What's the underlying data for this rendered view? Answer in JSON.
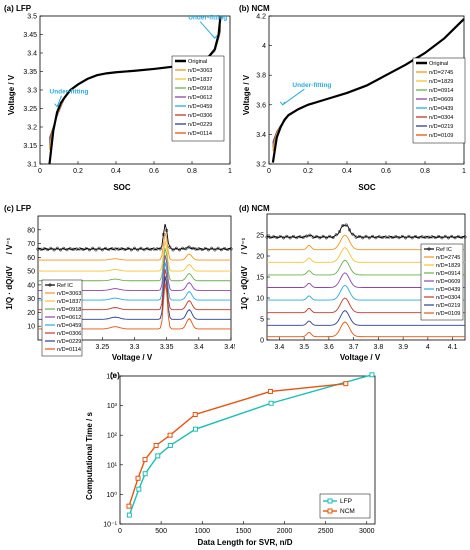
{
  "palette": [
    "#000000",
    "#f7941d",
    "#f4c430",
    "#6ab04c",
    "#8e44ad",
    "#29abe2",
    "#c0392b",
    "#2c3e91",
    "#e8530e"
  ],
  "chart_data": [
    {
      "id": "a",
      "type": "line",
      "panel_label": "(a) LFP",
      "xlabel": "SOC",
      "ylabel": "Voltage / V",
      "xlim": [
        0,
        1
      ],
      "ylim": [
        3.1,
        3.5
      ],
      "xticks": [
        0,
        0.2,
        0.4,
        0.6,
        0.8,
        1
      ],
      "yticks": [
        3.1,
        3.15,
        3.2,
        3.25,
        3.3,
        3.35,
        3.4,
        3.45,
        3.5
      ],
      "xtick_labels": [
        "0",
        "0.2",
        "0.4",
        "0.6",
        "0.8",
        "1"
      ],
      "ytick_labels": [
        "3.1",
        "3.15",
        "3.2",
        "3.25",
        "3.3",
        "3.35",
        "3.4",
        "3.45",
        "3.5"
      ],
      "legend": [
        "Original",
        "n/D=3063",
        "n/D=1837",
        "n/D=0918",
        "n/D=0612",
        "n/D=0459",
        "n/D=0306",
        "n/D=0229",
        "n/D=0114"
      ],
      "x": [
        0.05,
        0.07,
        0.09,
        0.11,
        0.13,
        0.16,
        0.2,
        0.25,
        0.3,
        0.35,
        0.4,
        0.5,
        0.6,
        0.7,
        0.8,
        0.88,
        0.92,
        0.94,
        0.95
      ],
      "original": [
        3.1,
        3.19,
        3.24,
        3.265,
        3.28,
        3.3,
        3.315,
        3.33,
        3.34,
        3.345,
        3.348,
        3.352,
        3.357,
        3.363,
        3.372,
        3.385,
        3.41,
        3.45,
        3.5
      ],
      "fit_start": [
        3.17,
        3.2,
        3.23,
        3.255,
        3.27,
        3.295,
        3.315,
        3.33,
        3.34,
        3.345,
        3.348,
        3.352,
        3.357,
        3.363,
        3.372,
        3.385,
        3.405,
        3.44,
        3.46
      ],
      "annotations": [
        {
          "text": "Under-fitting",
          "x": 0.05,
          "y": 3.29,
          "arrow_to": [
            0.09,
            3.255
          ]
        },
        {
          "text": "Under-fitting",
          "x": 0.78,
          "y": 3.49,
          "arrow_to": [
            0.92,
            3.44
          ]
        }
      ]
    },
    {
      "id": "b",
      "type": "line",
      "panel_label": "(b) NCM",
      "xlabel": "SOC",
      "ylabel": "Voltage / V",
      "xlim": [
        0,
        1
      ],
      "ylim": [
        3.2,
        4.2
      ],
      "xticks": [
        0,
        0.2,
        0.4,
        0.6,
        0.8,
        1
      ],
      "yticks": [
        3.2,
        3.4,
        3.6,
        3.8,
        4,
        4.2
      ],
      "xtick_labels": [
        "0",
        "0.2",
        "0.4",
        "0.6",
        "0.8",
        "1"
      ],
      "ytick_labels": [
        "3.2",
        "3.4",
        "3.6",
        "3.8",
        "4",
        "4.2"
      ],
      "legend": [
        "Original",
        "n/D=2745",
        "n/D=1829",
        "n/D=0914",
        "n/D=0609",
        "n/D=0439",
        "n/D=0304",
        "n/D=0219",
        "n/D=0109"
      ],
      "x": [
        0.02,
        0.04,
        0.06,
        0.08,
        0.1,
        0.15,
        0.2,
        0.3,
        0.4,
        0.5,
        0.6,
        0.7,
        0.8,
        0.9,
        1.0
      ],
      "original": [
        3.21,
        3.38,
        3.45,
        3.5,
        3.53,
        3.57,
        3.6,
        3.64,
        3.68,
        3.73,
        3.8,
        3.87,
        3.95,
        4.05,
        4.18
      ],
      "fit_start": [
        3.35,
        3.42,
        3.46,
        3.49,
        3.52,
        3.565,
        3.6,
        3.64,
        3.68,
        3.73,
        3.8,
        3.87,
        3.95,
        4.05,
        4.18
      ],
      "annotations": [
        {
          "text": "Under-fitting",
          "x": 0.12,
          "y": 3.72,
          "arrow_to": [
            0.07,
            3.6
          ]
        }
      ]
    },
    {
      "id": "c",
      "type": "line",
      "panel_label": "(c) LFP",
      "xlabel": "Voltage / V",
      "ylabel_main": "1/Q · dQ/dV",
      "ylabel_unit": "/ V⁻¹",
      "xlim": [
        3.15,
        3.45
      ],
      "ylim": [
        0,
        90
      ],
      "xticks": [
        3.2,
        3.25,
        3.3,
        3.35,
        3.4,
        3.45
      ],
      "yticks": [
        10,
        20,
        30,
        40,
        50,
        60,
        70,
        80
      ],
      "xtick_labels": [
        "3.2",
        "3.25",
        "3.3",
        "3.35",
        "3.4",
        "3.45"
      ],
      "ytick_labels": [
        "10",
        "20",
        "30",
        "40",
        "50",
        "60",
        "70",
        "80"
      ],
      "legend": [
        "Ref IC",
        "n/D=3063",
        "n/D=1837",
        "n/D=0918",
        "n/D=0612",
        "n/D=0459",
        "n/D=0306",
        "n/D=0229",
        "n/D=0114"
      ],
      "offsets": [
        66,
        58,
        50,
        43,
        36,
        29,
        22,
        15,
        8
      ],
      "peak_heights": [
        18,
        20,
        22,
        24,
        26,
        28,
        30,
        32,
        34
      ]
    },
    {
      "id": "d",
      "type": "line",
      "panel_label": "(d) NCM",
      "xlabel": "Voltage / V",
      "ylabel_main": "1/Q · dQ/dV",
      "ylabel_unit": "/ V⁻¹",
      "xlim": [
        3.35,
        4.15
      ],
      "ylim": [
        0,
        30
      ],
      "xticks": [
        3.4,
        3.5,
        3.6,
        3.7,
        3.8,
        3.9,
        4,
        4.1
      ],
      "yticks": [
        0,
        5,
        10,
        15,
        20,
        25
      ],
      "xtick_labels": [
        "3.4",
        "3.5",
        "3.6",
        "3.7",
        "3.8",
        "3.9",
        "4",
        "4.1"
      ],
      "ytick_labels": [
        "0",
        "5",
        "10",
        "15",
        "20",
        "25"
      ],
      "legend": [
        "Ref IC",
        "n/D=2745",
        "n/D=1829",
        "n/D=0914",
        "n/D=0609",
        "n/D=0439",
        "n/D=0304",
        "n/D=0219",
        "n/D=0109"
      ],
      "offsets": [
        24.5,
        21.5,
        18.5,
        15.5,
        12.5,
        9.5,
        6.5,
        3.5,
        0.8
      ],
      "peak_heights": [
        3,
        3.5,
        3.5,
        3.5,
        3.5,
        3.5,
        3.5,
        3.5,
        3.5
      ]
    },
    {
      "id": "e",
      "type": "line",
      "panel_label": "(e)",
      "xlabel": "Data Length for SVR, n/D",
      "ylabel": "Computational Time / s",
      "xlim": [
        0,
        3100
      ],
      "ylim_log": [
        -1,
        4
      ],
      "xticks": [
        0,
        500,
        1000,
        1500,
        2000,
        2500,
        3000
      ],
      "xtick_labels": [
        "0",
        "500",
        "1000",
        "1500",
        "2000",
        "2500",
        "3000"
      ],
      "yticks_log": [
        -1,
        0,
        1,
        2,
        3,
        4
      ],
      "ytick_labels": [
        "10⁻¹",
        "10⁰",
        "10¹",
        "10²",
        "10³",
        "10⁴"
      ],
      "series": [
        {
          "name": "LFP",
          "color": "#1bbfb5",
          "x": [
            114,
            229,
            306,
            459,
            612,
            918,
            1837,
            3063
          ],
          "y": [
            0.2,
            1.5,
            5,
            20,
            45,
            160,
            1200,
            11000
          ]
        },
        {
          "name": "NCM",
          "color": "#e8530e",
          "x": [
            109,
            219,
            304,
            439,
            609,
            914,
            1829,
            2745
          ],
          "y": [
            0.4,
            3.5,
            15,
            45,
            100,
            500,
            3000,
            5500
          ]
        }
      ],
      "legend_position": "bottom-right"
    }
  ]
}
